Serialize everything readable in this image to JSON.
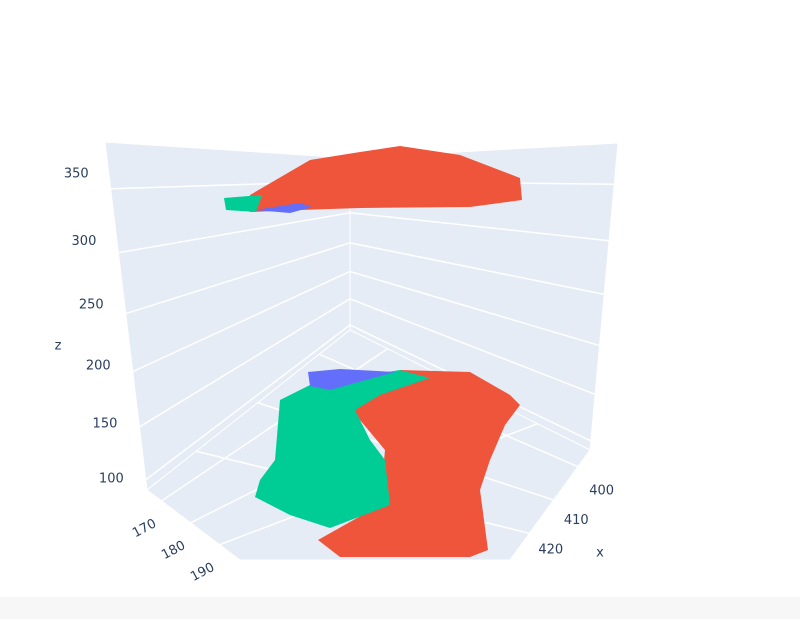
{
  "chart_data": {
    "type": "volume3d",
    "series": [
      {
        "color": "#ef553b"
      },
      {
        "color": "#00cc96"
      },
      {
        "color": "#636efa"
      }
    ],
    "zlabel": "z",
    "xlabel": "x",
    "zlim": [
      90,
      385
    ],
    "zticks": [
      100,
      150,
      200,
      250,
      300,
      350
    ],
    "xlim": [
      395,
      428
    ],
    "xticks": [
      400,
      410,
      420
    ],
    "ylim": [
      165,
      197
    ],
    "yticks": [
      170,
      180,
      190
    ],
    "grid": true
  }
}
